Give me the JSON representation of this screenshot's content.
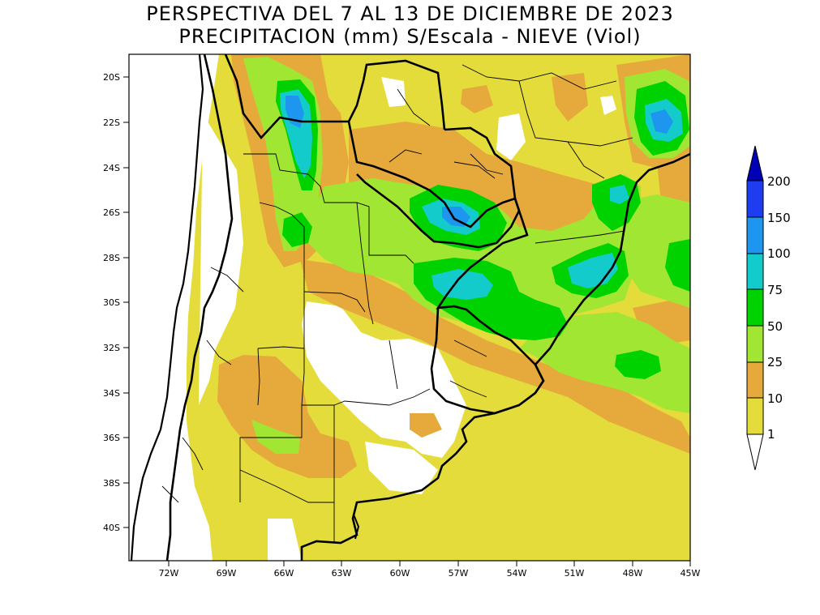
{
  "title": {
    "line1": "PERSPECTIVA DEL 7 AL 13 DE DICIEMBRE DE 2023",
    "line2": "PRECIPITACION (mm) S/Escala - NIEVE (Viol)"
  },
  "map": {
    "lat_labels": [
      "20S",
      "22S",
      "24S",
      "26S",
      "28S",
      "30S",
      "32S",
      "34S",
      "36S",
      "38S",
      "40S"
    ],
    "lon_labels": [
      "72W",
      "69W",
      "66W",
      "63W",
      "60W",
      "57W",
      "54W",
      "51W",
      "48W",
      "45W"
    ]
  },
  "legend": {
    "levels": [
      "1",
      "10",
      "25",
      "50",
      "75",
      "100",
      "150",
      "200"
    ],
    "colors": [
      "#e4dc3a",
      "#e6aa3c",
      "#a0e632",
      "#00d200",
      "#14cbcb",
      "#1e96f0",
      "#1e3cf0",
      "#0000b4"
    ],
    "below_color": "#ffffff"
  },
  "colors": {
    "c1": "#e4dc3a",
    "c10": "#e6aa3c",
    "c25": "#a0e632",
    "c50": "#00d200",
    "c75": "#14cbcb",
    "c100": "#1e96f0"
  }
}
